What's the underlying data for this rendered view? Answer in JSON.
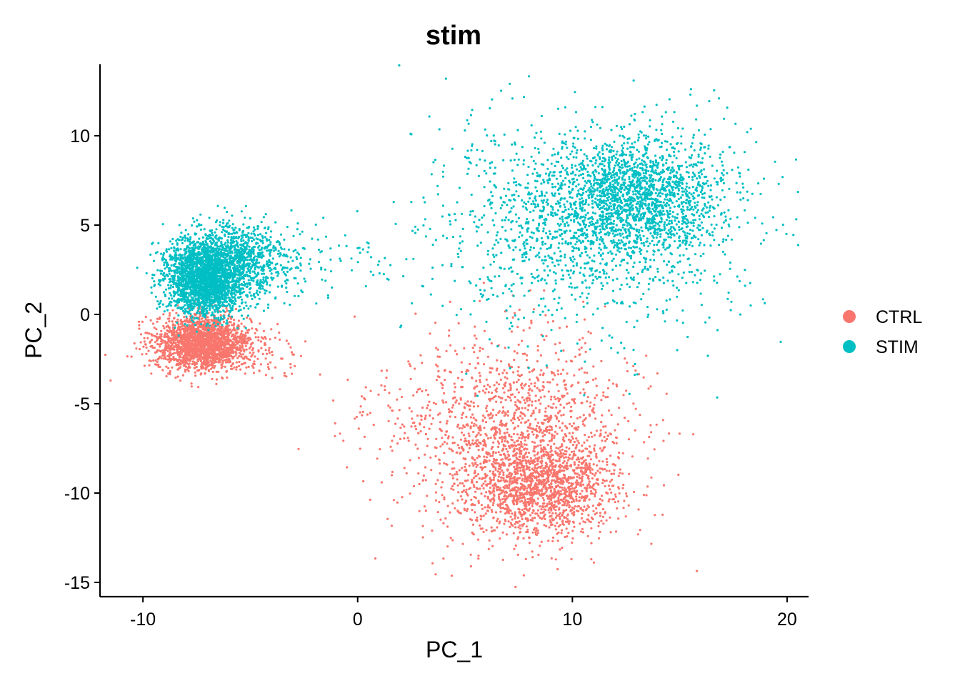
{
  "chart_data": {
    "type": "scatter",
    "title": "stim",
    "xlabel": "PC_1",
    "ylabel": "PC_2",
    "xlim": [
      -12,
      21
    ],
    "ylim": [
      -15.8,
      14
    ],
    "xticks": [
      -10,
      0,
      10,
      20
    ],
    "yticks": [
      -15,
      -10,
      -5,
      0,
      5,
      10
    ],
    "xtick_labels": [
      "-10",
      "0",
      "10",
      "20"
    ],
    "ytick_labels": [
      "-15",
      "-10",
      "-5",
      "0",
      "5",
      "10"
    ],
    "grid": false,
    "legend_position": "right",
    "series": [
      {
        "name": "CTRL",
        "color": "#F8766D",
        "clusters": [
          {
            "center": [
              -7.2,
              -1.6
            ],
            "spread": [
              1.1,
              0.75
            ],
            "count": 2200
          },
          {
            "center": [
              8.6,
              -9.6
            ],
            "spread": [
              1.5,
              1.2
            ],
            "count": 1200
          },
          {
            "center": [
              7.6,
              -7.0
            ],
            "spread": [
              2.6,
              2.8
            ],
            "count": 1600
          },
          {
            "center": [
              1.5,
              -5.5
            ],
            "spread": [
              1.6,
              1.2
            ],
            "count": 60
          },
          {
            "center": [
              -3.8,
              -2.5
            ],
            "spread": [
              0.7,
              0.7
            ],
            "count": 40
          }
        ]
      },
      {
        "name": "STIM",
        "color": "#00BFC4",
        "clusters": [
          {
            "center": [
              -7.2,
              2.0
            ],
            "spread": [
              0.9,
              1.0
            ],
            "count": 2200
          },
          {
            "center": [
              -5.7,
              3.0
            ],
            "spread": [
              1.3,
              1.1
            ],
            "count": 1000
          },
          {
            "center": [
              13.0,
              6.5
            ],
            "spread": [
              2.0,
              1.7
            ],
            "count": 1600
          },
          {
            "center": [
              10.5,
              5.0
            ],
            "spread": [
              3.5,
              3.0
            ],
            "count": 1400
          },
          {
            "center": [
              -1.0,
              3.2
            ],
            "spread": [
              1.5,
              1.0
            ],
            "count": 60
          }
        ]
      }
    ]
  }
}
